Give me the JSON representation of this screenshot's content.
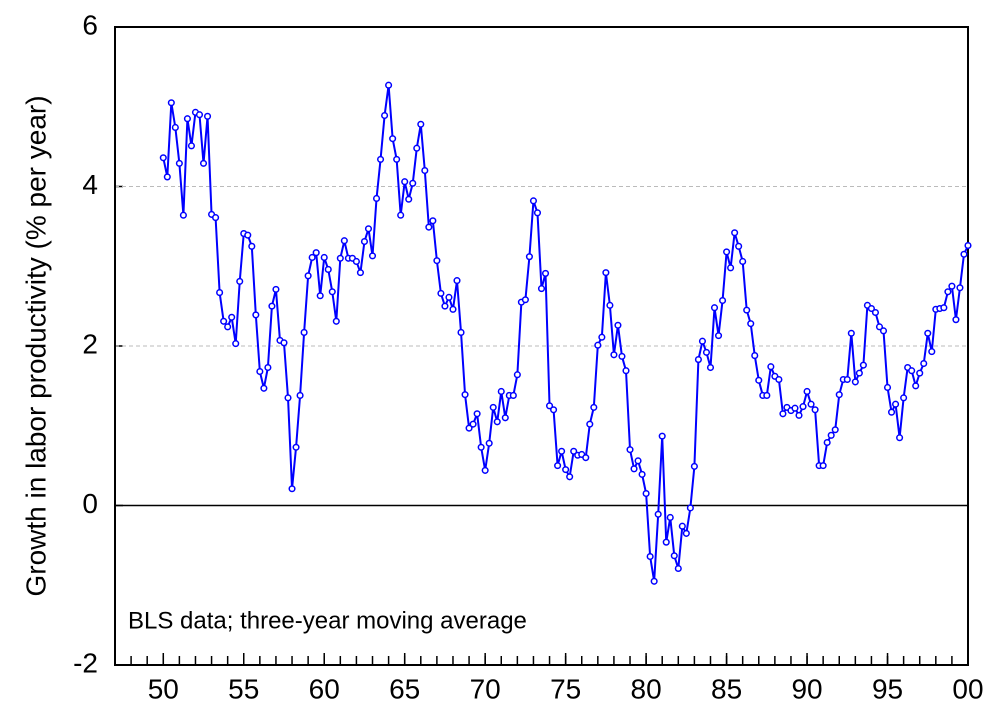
{
  "chart_data": {
    "type": "line",
    "y_label": "Growth in labor productivity (% per year)",
    "annotation": "BLS data; three-year moving average",
    "xlim": [
      1947,
      2000
    ],
    "ylim": [
      -2,
      6
    ],
    "yticks": [
      -2,
      0,
      2,
      4,
      6
    ],
    "xticks": [
      {
        "value": 1950,
        "label": "50"
      },
      {
        "value": 1955,
        "label": "55"
      },
      {
        "value": 1960,
        "label": "60"
      },
      {
        "value": 1965,
        "label": "65"
      },
      {
        "value": 1970,
        "label": "70"
      },
      {
        "value": 1975,
        "label": "75"
      },
      {
        "value": 1980,
        "label": "80"
      },
      {
        "value": 1985,
        "label": "85"
      },
      {
        "value": 1990,
        "label": "90"
      },
      {
        "value": 1995,
        "label": "95"
      },
      {
        "value": 2000,
        "label": "00"
      }
    ],
    "xminorticks": [
      1947,
      1948,
      1949,
      1950,
      1951,
      1952,
      1953,
      1954,
      1955,
      1956,
      1957,
      1958,
      1959,
      1960,
      1961,
      1962,
      1963,
      1964,
      1965,
      1966,
      1967,
      1968,
      1969,
      1970,
      1971,
      1972,
      1973,
      1974,
      1975,
      1976,
      1977,
      1978,
      1979,
      1980,
      1981,
      1982,
      1983,
      1984,
      1985,
      1986,
      1987,
      1988,
      1989,
      1990,
      1991,
      1992,
      1993,
      1994,
      1995,
      1996,
      1997,
      1998,
      1999,
      2000
    ],
    "grid": true,
    "zero_line": true,
    "x": [
      1950,
      1950.25,
      1950.5,
      1950.75,
      1951,
      1951.25,
      1951.5,
      1951.75,
      1952,
      1952.25,
      1952.5,
      1952.75,
      1953,
      1953.25,
      1953.5,
      1953.75,
      1954,
      1954.25,
      1954.5,
      1954.75,
      1955,
      1955.25,
      1955.5,
      1955.75,
      1956,
      1956.25,
      1956.5,
      1956.75,
      1957,
      1957.25,
      1957.5,
      1957.75,
      1958,
      1958.25,
      1958.5,
      1958.75,
      1959,
      1959.25,
      1959.5,
      1959.75,
      1960,
      1960.25,
      1960.5,
      1960.75,
      1961,
      1961.25,
      1961.5,
      1961.75,
      1962,
      1962.25,
      1962.5,
      1962.75,
      1963,
      1963.25,
      1963.5,
      1963.75,
      1964,
      1964.25,
      1964.5,
      1964.75,
      1965,
      1965.25,
      1965.5,
      1965.75,
      1966,
      1966.25,
      1966.5,
      1966.75,
      1967,
      1967.25,
      1967.5,
      1967.75,
      1968,
      1968.25,
      1968.5,
      1968.75,
      1969,
      1969.25,
      1969.5,
      1969.75,
      1970,
      1970.25,
      1970.5,
      1970.75,
      1971,
      1971.25,
      1971.5,
      1971.75,
      1972,
      1972.25,
      1972.5,
      1972.75,
      1973,
      1973.25,
      1973.5,
      1973.75,
      1974,
      1974.25,
      1974.5,
      1974.75,
      1975,
      1975.25,
      1975.5,
      1975.75,
      1976,
      1976.25,
      1976.5,
      1976.75,
      1977,
      1977.25,
      1977.5,
      1977.75,
      1978,
      1978.25,
      1978.5,
      1978.75,
      1979,
      1979.25,
      1979.5,
      1979.75,
      1980,
      1980.25,
      1980.5,
      1980.75,
      1981,
      1981.25,
      1981.5,
      1981.75,
      1982,
      1982.25,
      1982.5,
      1982.75,
      1983,
      1983.25,
      1983.5,
      1983.75,
      1984,
      1984.25,
      1984.5,
      1984.75,
      1985,
      1985.25,
      1985.5,
      1985.75,
      1986,
      1986.25,
      1986.5,
      1986.75,
      1987,
      1987.25,
      1987.5,
      1987.75,
      1988,
      1988.25,
      1988.5,
      1988.75,
      1989,
      1989.25,
      1989.5,
      1989.75,
      1990,
      1990.25,
      1990.5,
      1990.75,
      1991,
      1991.25,
      1991.5,
      1991.75,
      1992,
      1992.25,
      1992.5,
      1992.75,
      1993,
      1993.25,
      1993.5,
      1993.75,
      1994,
      1994.25,
      1994.5,
      1994.75,
      1995,
      1995.25,
      1995.5,
      1995.75,
      1996,
      1996.25,
      1996.5,
      1996.75,
      1997,
      1997.25,
      1997.5,
      1997.75,
      1998,
      1998.25,
      1998.5,
      1998.75,
      1999,
      1999.25,
      1999.5,
      1999.75,
      2000
    ],
    "series": [
      {
        "color": "#0000ff",
        "values": [
          4.36,
          4.12,
          5.05,
          4.74,
          4.29,
          3.64,
          4.85,
          4.51,
          4.93,
          4.9,
          4.29,
          4.88,
          3.65,
          3.61,
          2.67,
          2.31,
          2.24,
          2.36,
          2.03,
          2.81,
          3.41,
          3.39,
          3.25,
          2.39,
          1.68,
          1.47,
          1.73,
          2.5,
          2.71,
          2.07,
          2.04,
          1.35,
          0.21,
          0.73,
          1.38,
          2.17,
          2.88,
          3.11,
          3.17,
          2.63,
          3.11,
          2.96,
          2.68,
          2.31,
          3.1,
          3.32,
          3.1,
          3.1,
          3.06,
          2.92,
          3.31,
          3.47,
          3.13,
          3.85,
          4.34,
          4.89,
          5.27,
          4.6,
          4.34,
          3.64,
          4.06,
          3.84,
          4.04,
          4.48,
          4.78,
          4.2,
          3.49,
          3.57,
          3.07,
          2.66,
          2.5,
          2.61,
          2.46,
          2.82,
          2.17,
          1.39,
          0.97,
          1.02,
          1.15,
          0.73,
          0.44,
          0.78,
          1.23,
          1.05,
          1.43,
          1.1,
          1.38,
          1.38,
          1.64,
          2.55,
          2.58,
          3.12,
          3.82,
          3.67,
          2.72,
          2.91,
          1.25,
          1.2,
          0.5,
          0.68,
          0.45,
          0.36,
          0.68,
          0.63,
          0.64,
          0.6,
          1.02,
          1.23,
          2.01,
          2.11,
          2.92,
          2.51,
          1.89,
          2.26,
          1.87,
          1.69,
          0.7,
          0.46,
          0.56,
          0.39,
          0.15,
          -0.64,
          -0.95,
          -0.11,
          0.87,
          -0.46,
          -0.15,
          -0.63,
          -0.79,
          -0.26,
          -0.35,
          -0.03,
          0.49,
          1.83,
          2.06,
          1.92,
          1.73,
          2.48,
          2.13,
          2.57,
          3.18,
          2.98,
          3.42,
          3.25,
          3.06,
          2.45,
          2.28,
          1.88,
          1.57,
          1.38,
          1.38,
          1.74,
          1.62,
          1.58,
          1.15,
          1.23,
          1.19,
          1.22,
          1.13,
          1.24,
          1.43,
          1.27,
          1.2,
          0.5,
          0.5,
          0.79,
          0.88,
          0.95,
          1.39,
          1.58,
          1.58,
          2.16,
          1.55,
          1.66,
          1.76,
          2.51,
          2.47,
          2.42,
          2.24,
          2.19,
          1.48,
          1.17,
          1.27,
          0.85,
          1.35,
          1.73,
          1.69,
          1.5,
          1.66,
          1.78,
          2.16,
          1.93,
          2.46,
          2.47,
          2.48,
          2.68,
          2.75,
          2.33,
          2.73,
          3.15,
          3.26
        ]
      }
    ]
  }
}
